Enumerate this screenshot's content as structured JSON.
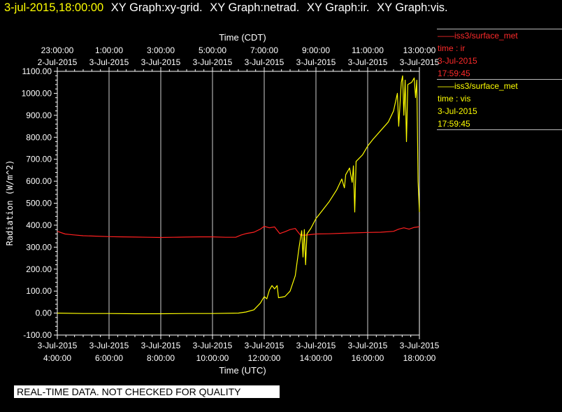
{
  "header": {
    "timestamp": "3-jul-2015,18:00:00",
    "graphs": [
      "XY Graph:xy-grid.",
      "XY Graph:netrad.",
      "XY Graph:ir.",
      "XY Graph:vis."
    ]
  },
  "legends": [
    {
      "title": "——iss3/surface_met",
      "field": "time : ir",
      "date": "3-Jul-2015",
      "time": "17:59:45",
      "color": "#ff2020"
    },
    {
      "title": "——iss3/surface_met",
      "field": "time : vis",
      "date": "3-Jul-2015",
      "time": "17:59:45",
      "color": "#ffff00"
    }
  ],
  "quality_note": "REAL-TIME DATA. NOT CHECKED FOR QUALITY",
  "chart_data": {
    "type": "line",
    "title": "",
    "xlabel": "Time (UTC)",
    "x2label": "Time (CDT)",
    "ylabel": "Radiation  (W/m^2)",
    "x_unit": "hours UTC on 3-Jul-2015",
    "xlim": [
      4,
      18
    ],
    "ylim": [
      -100,
      1100
    ],
    "yticks": [
      -100,
      0,
      100,
      200,
      300,
      400,
      500,
      600,
      700,
      800,
      900,
      1000,
      1100
    ],
    "ytick_labels": [
      "-100.00",
      "0.00",
      "100.00",
      "200.00",
      "300.00",
      "400.00",
      "500.00",
      "600.00",
      "700.00",
      "800.00",
      "900.00",
      "1000.00",
      "1100.00"
    ],
    "xticks_bottom": [
      {
        "x": 4,
        "date": "3-Jul-2015",
        "time": "4:00:00"
      },
      {
        "x": 6,
        "date": "3-Jul-2015",
        "time": "6:00:00"
      },
      {
        "x": 8,
        "date": "3-Jul-2015",
        "time": "8:00:00"
      },
      {
        "x": 10,
        "date": "3-Jul-2015",
        "time": "10:00:00"
      },
      {
        "x": 12,
        "date": "3-Jul-2015",
        "time": "12:00:00"
      },
      {
        "x": 14,
        "date": "3-Jul-2015",
        "time": "14:00:00"
      },
      {
        "x": 16,
        "date": "3-Jul-2015",
        "time": "16:00:00"
      },
      {
        "x": 18,
        "date": "3-Jul-2015",
        "time": "18:00:00"
      }
    ],
    "xticks_top": [
      {
        "x": 4,
        "time": "23:00:00",
        "date": "2-Jul-2015"
      },
      {
        "x": 6,
        "time": "1:00:00",
        "date": "3-Jul-2015"
      },
      {
        "x": 8,
        "time": "3:00:00",
        "date": "3-Jul-2015"
      },
      {
        "x": 10,
        "time": "5:00:00",
        "date": "3-Jul-2015"
      },
      {
        "x": 12,
        "time": "7:00:00",
        "date": "3-Jul-2015"
      },
      {
        "x": 14,
        "time": "9:00:00",
        "date": "3-Jul-2015"
      },
      {
        "x": 16,
        "time": "11:00:00",
        "date": "3-Jul-2015"
      },
      {
        "x": 18,
        "time": "13:00:00",
        "date": "3-Jul-2015"
      }
    ],
    "grid": true,
    "series": [
      {
        "name": "time : ir",
        "color": "#ff2020",
        "points": [
          [
            4.0,
            372
          ],
          [
            4.3,
            360
          ],
          [
            4.6,
            356
          ],
          [
            5.0,
            352
          ],
          [
            5.5,
            350
          ],
          [
            6.0,
            348
          ],
          [
            6.5,
            347
          ],
          [
            7.0,
            346
          ],
          [
            7.5,
            345
          ],
          [
            8.0,
            344
          ],
          [
            8.5,
            345
          ],
          [
            9.0,
            346
          ],
          [
            9.5,
            347
          ],
          [
            10.0,
            347
          ],
          [
            10.5,
            345
          ],
          [
            10.9,
            345
          ],
          [
            11.1,
            355
          ],
          [
            11.3,
            362
          ],
          [
            11.6,
            368
          ],
          [
            11.85,
            382
          ],
          [
            12.0,
            395
          ],
          [
            12.2,
            388
          ],
          [
            12.4,
            392
          ],
          [
            12.6,
            362
          ],
          [
            12.8,
            370
          ],
          [
            13.0,
            380
          ],
          [
            13.2,
            385
          ],
          [
            13.4,
            355
          ],
          [
            13.6,
            355
          ],
          [
            14.0,
            360
          ],
          [
            14.5,
            361
          ],
          [
            15.0,
            363
          ],
          [
            15.5,
            365
          ],
          [
            16.0,
            367
          ],
          [
            16.5,
            368
          ],
          [
            17.0,
            372
          ],
          [
            17.2,
            382
          ],
          [
            17.4,
            388
          ],
          [
            17.6,
            382
          ],
          [
            17.8,
            390
          ],
          [
            18.0,
            393
          ]
        ]
      },
      {
        "name": "time : vis",
        "color": "#ffff00",
        "points": [
          [
            4.0,
            0
          ],
          [
            5.0,
            -2
          ],
          [
            6.0,
            -2
          ],
          [
            7.0,
            -3
          ],
          [
            8.0,
            -3
          ],
          [
            9.0,
            -2
          ],
          [
            10.0,
            -2
          ],
          [
            11.0,
            0
          ],
          [
            11.3,
            5
          ],
          [
            11.6,
            15
          ],
          [
            11.85,
            45
          ],
          [
            12.0,
            75
          ],
          [
            12.1,
            65
          ],
          [
            12.2,
            105
          ],
          [
            12.3,
            125
          ],
          [
            12.4,
            110
          ],
          [
            12.5,
            125
          ],
          [
            12.55,
            70
          ],
          [
            12.8,
            75
          ],
          [
            13.0,
            100
          ],
          [
            13.2,
            170
          ],
          [
            13.35,
            300
          ],
          [
            13.45,
            375
          ],
          [
            13.5,
            255
          ],
          [
            13.55,
            380
          ],
          [
            13.6,
            220
          ],
          [
            13.65,
            360
          ],
          [
            13.8,
            385
          ],
          [
            14.0,
            430
          ],
          [
            14.2,
            460
          ],
          [
            14.5,
            505
          ],
          [
            14.8,
            560
          ],
          [
            15.0,
            610
          ],
          [
            15.1,
            570
          ],
          [
            15.15,
            630
          ],
          [
            15.3,
            660
          ],
          [
            15.4,
            595
          ],
          [
            15.45,
            670
          ],
          [
            15.5,
            460
          ],
          [
            15.55,
            690
          ],
          [
            15.8,
            720
          ],
          [
            16.0,
            760
          ],
          [
            16.2,
            790
          ],
          [
            16.5,
            830
          ],
          [
            16.8,
            870
          ],
          [
            17.0,
            920
          ],
          [
            17.15,
            1000
          ],
          [
            17.2,
            850
          ],
          [
            17.3,
            1050
          ],
          [
            17.35,
            1080
          ],
          [
            17.4,
            900
          ],
          [
            17.45,
            1060
          ],
          [
            17.5,
            780
          ],
          [
            17.55,
            1040
          ],
          [
            17.7,
            1050
          ],
          [
            17.8,
            1070
          ],
          [
            17.85,
            980
          ],
          [
            17.9,
            1060
          ],
          [
            17.95,
            600
          ],
          [
            18.0,
            460
          ]
        ]
      }
    ]
  }
}
